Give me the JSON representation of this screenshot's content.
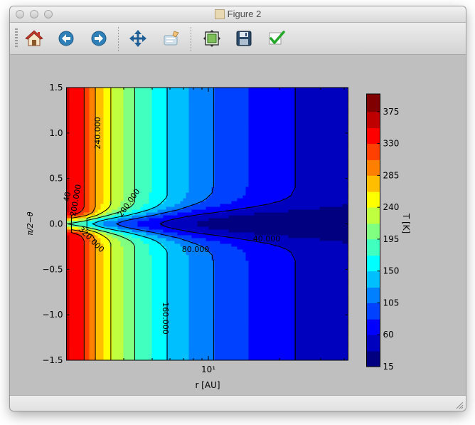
{
  "window": {
    "title": "Figure 2"
  },
  "toolbar": {
    "buttons": [
      {
        "name": "home-button",
        "icon": "home-icon"
      },
      {
        "name": "back-button",
        "icon": "arrow-left-icon"
      },
      {
        "name": "forward-button",
        "icon": "arrow-right-icon"
      },
      {
        "name": "pan-button",
        "icon": "move-arrows-icon"
      },
      {
        "name": "zoom-button",
        "icon": "zoom-rect-icon"
      },
      {
        "name": "subplots-button",
        "icon": "configure-subplots-icon"
      },
      {
        "name": "save-button",
        "icon": "floppy-disk-icon"
      },
      {
        "name": "edit-parameters-button",
        "icon": "checkmark-icon"
      }
    ]
  },
  "chart_data": {
    "type": "heatmap",
    "plot_kind": "filled contour",
    "xlabel": "r [AU]",
    "ylabel": "π/2−θ",
    "x_scale": "log",
    "x_tick_labels": [
      "10¹"
    ],
    "y_tick_labels": [
      "1.5",
      "1.0",
      "0.5",
      "0.0",
      "−0.5",
      "−1.0",
      "−1.5"
    ],
    "ylim": [
      -1.5,
      1.5
    ],
    "colorbar": {
      "label": "T [K]",
      "min": 15,
      "max": 400,
      "tick_labels": [
        "15",
        "60",
        "105",
        "150",
        "195",
        "240",
        "285",
        "330",
        "375"
      ],
      "levels": [
        15,
        37,
        60,
        82,
        105,
        127,
        150,
        172,
        195,
        217,
        240,
        262,
        285,
        307,
        330,
        352,
        375,
        400
      ],
      "colormap": "jet"
    },
    "contour_labels": [
      "240.000",
      "200.000",
      "200.000",
      "320.000",
      "80.000",
      "40.000",
      "160.000",
      "40"
    ]
  }
}
